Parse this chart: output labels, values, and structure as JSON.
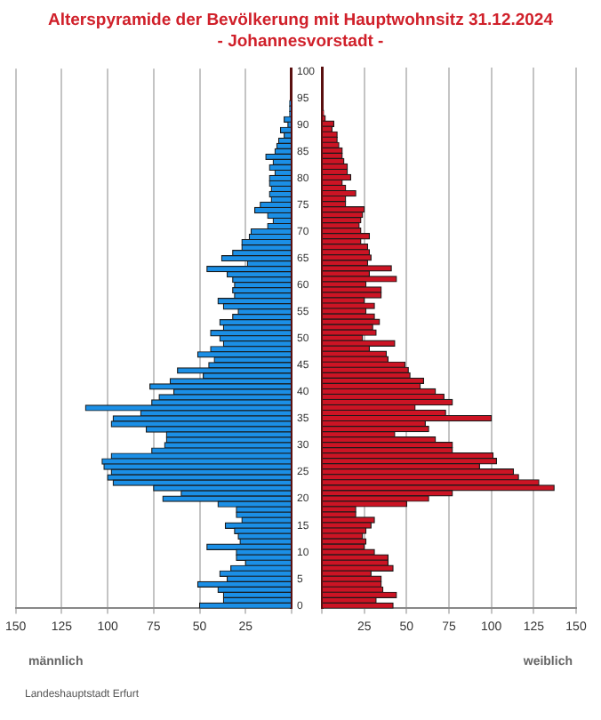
{
  "chart_data": [
    {
      "type": "bar",
      "orientation": "horizontal",
      "title": "Alterspyramide der Bevölkerung mit Hauptwohnsitz 31.12.2024",
      "subtitle": "- Johannesvorstadt -",
      "xlabel": "männlich",
      "annotations": [
        "Landeshauptstadt Erfurt"
      ],
      "categories": [
        "100",
        null,
        null,
        null,
        null,
        "95",
        null,
        null,
        null,
        null,
        "90",
        null,
        null,
        null,
        null,
        "85",
        null,
        null,
        null,
        null,
        "80",
        null,
        null,
        null,
        null,
        "75",
        null,
        null,
        null,
        null,
        "70",
        null,
        null,
        null,
        null,
        "65",
        null,
        null,
        null,
        null,
        "60",
        null,
        null,
        null,
        null,
        "55",
        null,
        null,
        null,
        null,
        "50",
        null,
        null,
        null,
        null,
        "45",
        null,
        null,
        null,
        null,
        "40",
        null,
        null,
        null,
        null,
        "35",
        null,
        null,
        null,
        null,
        "30",
        null,
        null,
        null,
        null,
        "25",
        null,
        null,
        null,
        null,
        "20",
        null,
        null,
        null,
        null,
        "15",
        null,
        null,
        null,
        null,
        "10",
        null,
        null,
        null,
        null,
        "5",
        null,
        null,
        null,
        null,
        "0"
      ],
      "series": [
        {
          "color": "#1b8fe6",
          "values": [
            0,
            0,
            0,
            0,
            0,
            0,
            1,
            1,
            1,
            4,
            2,
            6,
            4,
            7,
            8,
            9,
            14,
            10,
            12,
            9,
            12,
            12,
            11,
            12,
            11,
            17,
            20,
            13,
            10,
            13,
            22,
            23,
            27,
            27,
            32,
            38,
            24,
            46,
            35,
            32,
            31,
            32,
            31,
            40,
            37,
            29,
            32,
            39,
            37,
            44,
            39,
            37,
            44,
            51,
            42,
            45,
            62,
            48,
            66,
            77,
            64,
            72,
            76,
            112,
            82,
            97,
            98,
            79,
            68,
            68,
            69,
            76,
            98,
            103,
            102,
            98,
            100,
            97,
            75,
            60,
            70,
            40,
            30,
            30,
            27,
            36,
            31,
            29,
            28,
            46,
            30,
            30,
            25,
            33,
            39,
            35,
            51,
            40,
            37,
            37,
            50
          ]
        }
      ],
      "xlim": [
        150,
        0
      ],
      "xticks": [
        150,
        125,
        100,
        75,
        50,
        25,
        {
          "value": 0,
          "label": null
        }
      ],
      "grid": "x"
    },
    {
      "type": "bar",
      "orientation": "horizontal",
      "xlabel": "weiblich",
      "tick_labels": "x",
      "categories": [
        "100",
        null,
        null,
        null,
        null,
        "95",
        null,
        null,
        null,
        null,
        "90",
        null,
        null,
        null,
        null,
        "85",
        null,
        null,
        null,
        null,
        "80",
        null,
        null,
        null,
        null,
        "75",
        null,
        null,
        null,
        null,
        "70",
        null,
        null,
        null,
        null,
        "65",
        null,
        null,
        null,
        null,
        "60",
        null,
        null,
        null,
        null,
        "55",
        null,
        null,
        null,
        null,
        "50",
        null,
        null,
        null,
        null,
        "45",
        null,
        null,
        null,
        null,
        "40",
        null,
        null,
        null,
        null,
        "35",
        null,
        null,
        null,
        null,
        "30",
        null,
        null,
        null,
        null,
        "25",
        null,
        null,
        null,
        null,
        "20",
        null,
        null,
        null,
        null,
        "15",
        null,
        null,
        null,
        null,
        "10",
        null,
        null,
        null,
        null,
        "5",
        null,
        null,
        null,
        null,
        "0"
      ],
      "series": [
        {
          "color": "#cc1424",
          "values": [
            0,
            0,
            0,
            0,
            0,
            0,
            0,
            0,
            1,
            2,
            7,
            6,
            9,
            9,
            10,
            12,
            12,
            13,
            15,
            15,
            17,
            12,
            14,
            20,
            14,
            14,
            25,
            24,
            23,
            22,
            23,
            28,
            23,
            27,
            28,
            29,
            27,
            41,
            28,
            44,
            26,
            35,
            35,
            25,
            31,
            26,
            31,
            34,
            30,
            32,
            24,
            43,
            28,
            38,
            39,
            49,
            51,
            52,
            60,
            58,
            67,
            72,
            77,
            55,
            73,
            100,
            61,
            63,
            43,
            67,
            77,
            77,
            101,
            103,
            93,
            113,
            116,
            128,
            137,
            77,
            63,
            50,
            20,
            20,
            31,
            29,
            26,
            24,
            26,
            25,
            31,
            39,
            39,
            42,
            29,
            35,
            35,
            36,
            44,
            32,
            42
          ]
        }
      ],
      "xlim": [
        0,
        150
      ],
      "xticks": [
        {
          "value": 0,
          "label": null
        },
        25,
        50,
        75,
        100,
        125,
        150
      ],
      "grid": "x"
    }
  ]
}
